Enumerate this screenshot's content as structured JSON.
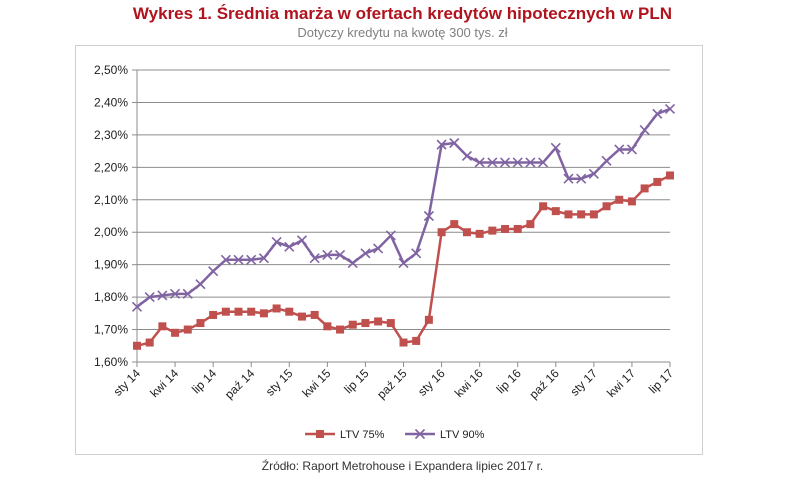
{
  "colors": {
    "ltv75": "#c0504d",
    "ltv90": "#8064a2",
    "title": "#b0131d"
  },
  "chart_data": {
    "type": "line",
    "title": "Wykres 1. Średnia marża w ofertach kredytów hipotecznych w PLN",
    "subtitle": "Dotyczy kredytu na kwotę 300 tys. zł",
    "source": "Źródło: Raport Metrohouse i Expandera lipiec 2017 r.",
    "xlabel": "",
    "ylabel": "",
    "ylim": [
      1.6,
      2.5
    ],
    "ytick_labels": [
      "1,60%",
      "1,70%",
      "1,80%",
      "1,90%",
      "2,00%",
      "2,10%",
      "2,20%",
      "2,30%",
      "2,40%",
      "2,50%"
    ],
    "xtick_labels": [
      {
        "label": "sty 14",
        "index": 0
      },
      {
        "label": "kwi 14",
        "index": 3
      },
      {
        "label": "lip 14",
        "index": 6
      },
      {
        "label": "paź 14",
        "index": 9
      },
      {
        "label": "sty 15",
        "index": 12
      },
      {
        "label": "kwi 15",
        "index": 15
      },
      {
        "label": "lip 15",
        "index": 18
      },
      {
        "label": "paź 15",
        "index": 21
      },
      {
        "label": "sty 16",
        "index": 24
      },
      {
        "label": "kwi 16",
        "index": 27
      },
      {
        "label": "lip 16",
        "index": 30
      },
      {
        "label": "paź 16",
        "index": 33
      },
      {
        "label": "sty 17",
        "index": 36
      },
      {
        "label": "kwi 17",
        "index": 39
      },
      {
        "label": "lip 17",
        "index": 42
      }
    ],
    "series": [
      {
        "name": "LTV 75%",
        "marker": "square",
        "values": [
          1.65,
          1.66,
          1.71,
          1.69,
          1.7,
          1.72,
          1.745,
          1.755,
          1.755,
          1.755,
          1.75,
          1.765,
          1.755,
          1.74,
          1.745,
          1.71,
          1.7,
          1.715,
          1.72,
          1.725,
          1.72,
          1.66,
          1.665,
          1.73,
          2.0,
          2.025,
          2.0,
          1.995,
          2.005,
          2.01,
          2.01,
          2.025,
          2.08,
          2.065,
          2.055,
          2.055,
          2.055,
          2.08,
          2.1,
          2.095,
          2.135,
          2.155,
          2.175
        ]
      },
      {
        "name": "LTV 90%",
        "marker": "x",
        "values": [
          1.77,
          1.8,
          1.805,
          1.81,
          1.81,
          1.84,
          1.88,
          1.915,
          1.915,
          1.915,
          1.92,
          1.97,
          1.955,
          1.975,
          1.92,
          1.93,
          1.93,
          1.905,
          1.935,
          1.95,
          1.99,
          1.905,
          1.935,
          2.05,
          2.27,
          2.275,
          2.235,
          2.215,
          2.215,
          2.215,
          2.215,
          2.215,
          2.215,
          2.26,
          2.165,
          2.165,
          2.18,
          2.22,
          2.255,
          2.255,
          2.315,
          2.365,
          2.38
        ]
      }
    ],
    "legend": {
      "placement": "bottom-center"
    }
  }
}
